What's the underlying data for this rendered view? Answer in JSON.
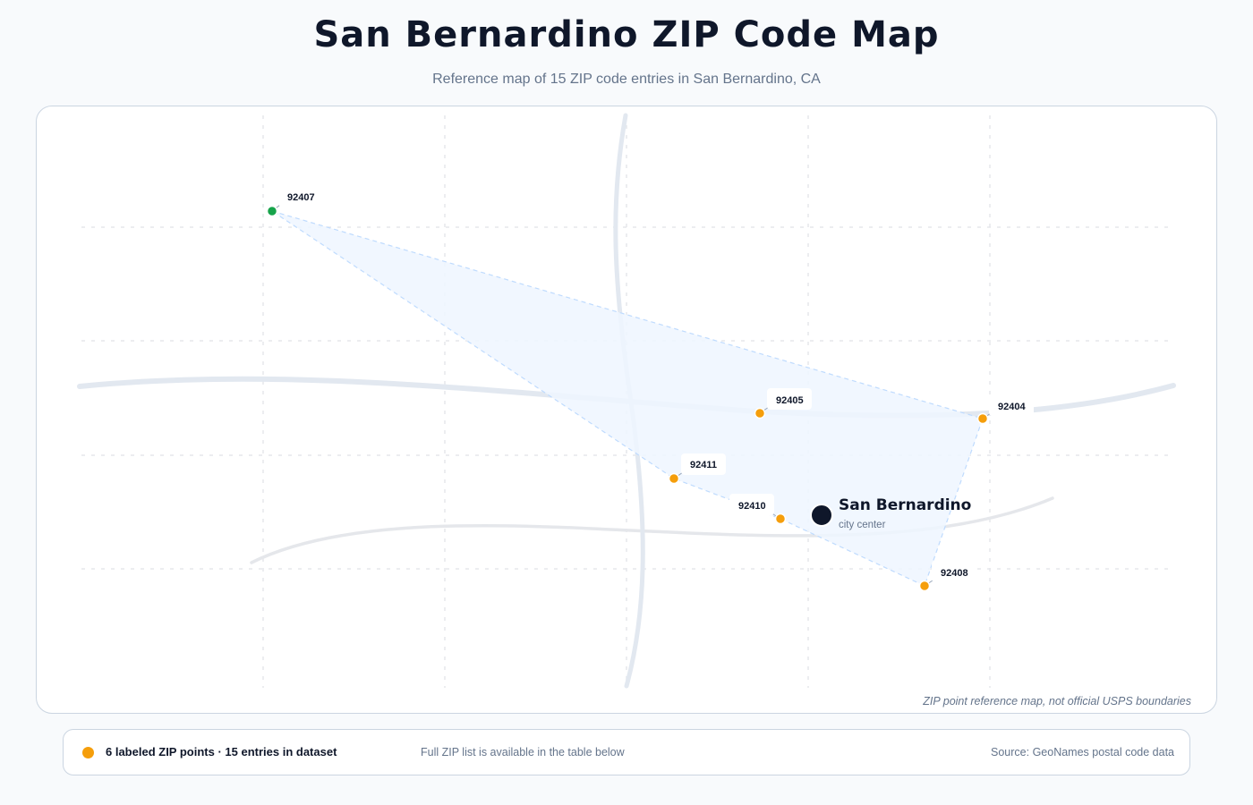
{
  "header": {
    "title": "San Bernardino ZIP Code Map",
    "subtitle": "Reference map of 15 ZIP code entries in San Bernardino, CA"
  },
  "map": {
    "disclaimer": "ZIP point reference map, not official USPS boundaries",
    "city": {
      "name": "San Bernardino",
      "caption": "city center"
    },
    "zip_points": [
      {
        "zip": "92407",
        "color": "#16a34a"
      },
      {
        "zip": "92405",
        "color": "#f59e0b"
      },
      {
        "zip": "92404",
        "color": "#f59e0b"
      },
      {
        "zip": "92411",
        "color": "#f59e0b"
      },
      {
        "zip": "92410",
        "color": "#f59e0b"
      },
      {
        "zip": "92408",
        "color": "#f59e0b"
      }
    ]
  },
  "legend": {
    "summary": "6 labeled ZIP points · 15 entries in dataset",
    "note": "Full ZIP list is available in the table below",
    "source": "Source: GeoNames postal code data"
  },
  "colors": {
    "accent": "#f59e0b",
    "highlight": "#16a34a",
    "city_marker": "#0f172a",
    "hull_fill": "#eff6ff"
  }
}
